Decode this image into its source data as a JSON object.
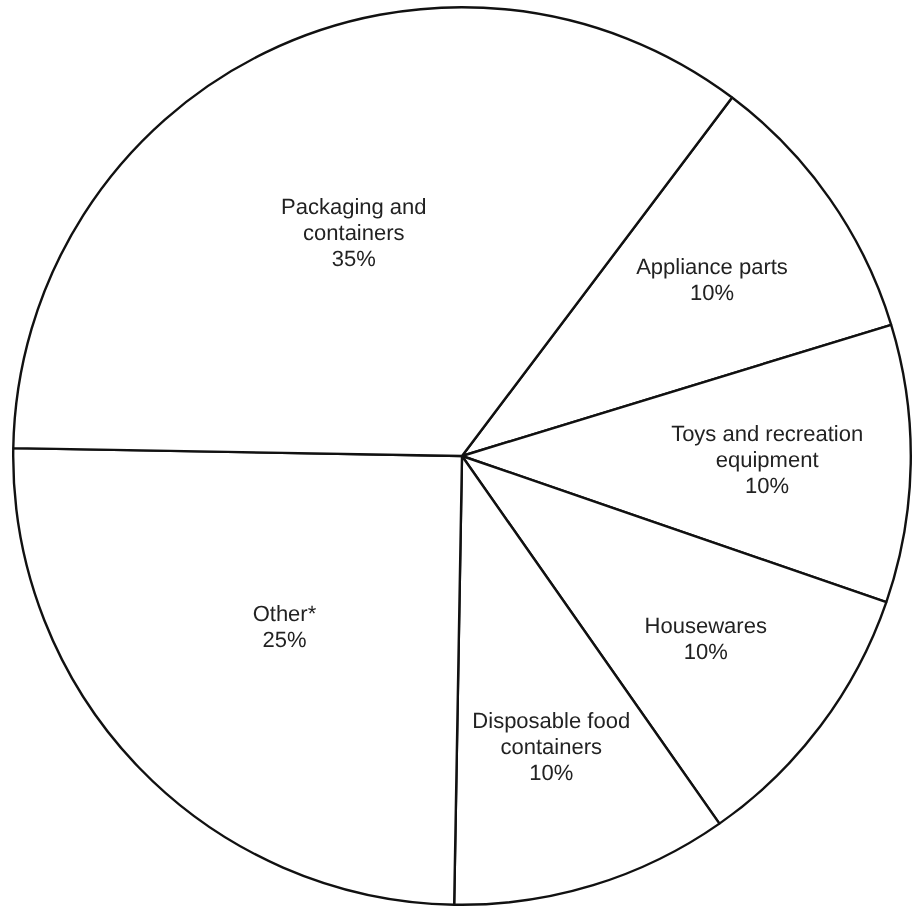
{
  "chart_data": {
    "type": "pie",
    "categories": [
      "Appliance parts",
      "Toys and recreation equipment",
      "Housewares",
      "Disposable food containers",
      "Other*",
      "Packaging and containers"
    ],
    "values": [
      10,
      10,
      10,
      10,
      25,
      35
    ],
    "colors": [
      "#ffffff",
      "#ffffff",
      "#ffffff",
      "#ffffff",
      "#ffffff",
      "#ffffff"
    ],
    "value_labels": [
      "10%",
      "10%",
      "10%",
      "10%",
      "25%",
      "35%"
    ],
    "legend": false
  }
}
